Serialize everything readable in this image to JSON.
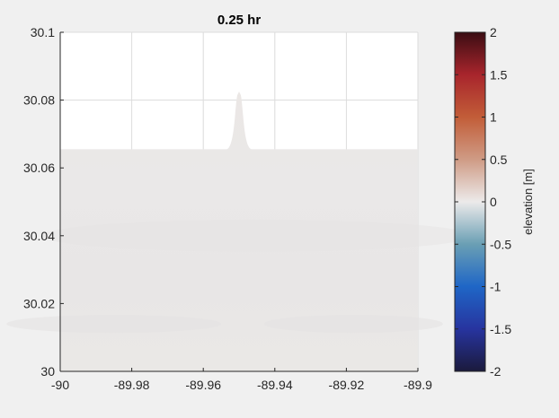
{
  "chart_data": {
    "type": "heatmap",
    "title": "0.25 hr",
    "xlim": [
      -90,
      -89.9
    ],
    "ylim": [
      30,
      30.1
    ],
    "x_ticks": [
      -90,
      -89.98,
      -89.96,
      -89.94,
      -89.92,
      -89.9
    ],
    "x_tick_labels": [
      "-90",
      "-89.98",
      "-89.96",
      "-89.94",
      "-89.92",
      "-89.9"
    ],
    "y_ticks": [
      30,
      30.02,
      30.04,
      30.06,
      30.08,
      30.1
    ],
    "y_tick_labels": [
      "30",
      "30.02",
      "30.04",
      "30.06",
      "30.08",
      "30.1"
    ],
    "grid": true,
    "colorbar": {
      "label": "elevation [m]",
      "clim": [
        -2,
        2
      ],
      "ticks": [
        -2,
        -1.5,
        -1,
        -0.5,
        0,
        0.5,
        1,
        1.5,
        2
      ],
      "tick_labels": [
        "-2",
        "-1.5",
        "-1",
        "-0.5",
        "0",
        "0.5",
        "1",
        "1.5",
        "2"
      ],
      "colormap_stops": [
        {
          "v": -2.0,
          "color": "#1b1a3c"
        },
        {
          "v": -1.5,
          "color": "#27349f"
        },
        {
          "v": -1.0,
          "color": "#1f66c6"
        },
        {
          "v": -0.5,
          "color": "#6a9fb4"
        },
        {
          "v": 0.0,
          "color": "#eceaea"
        },
        {
          "v": 0.5,
          "color": "#cf9b85"
        },
        {
          "v": 1.0,
          "color": "#c25d38"
        },
        {
          "v": 1.5,
          "color": "#a8252c"
        },
        {
          "v": 2.0,
          "color": "#3b0d13"
        }
      ]
    },
    "domain_shoreline_lat": 30.0655,
    "channel": {
      "lon_center": -89.95,
      "half_width_base": 0.0025,
      "tip_lat": 30.0825
    },
    "field_value": 0.0,
    "field_colors": [
      "#ebe7e5",
      "#eae8e8",
      "#e8e6e6",
      "#eae8e6"
    ]
  }
}
